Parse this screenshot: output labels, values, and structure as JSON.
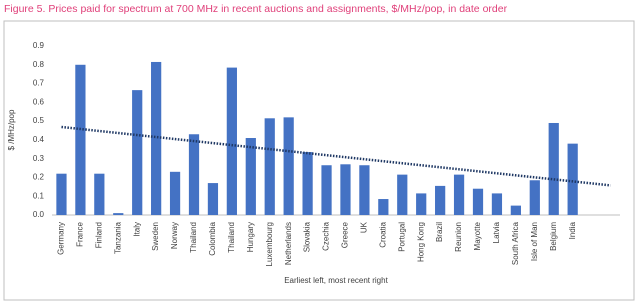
{
  "chart_data": {
    "type": "bar",
    "title": "Figure 5. Prices paid for spectrum at 700 MHz in recent auctions and assignments, $/MHz/pop, in date order",
    "y_label": "$ /MHz/pop",
    "x_label": "Earliest left, most recent right",
    "categories": [
      "Germany",
      "France",
      "Finland",
      "Tanzania",
      "Italy",
      "Sweden",
      "Norway",
      "Thailand",
      "Colombia",
      "Thailand",
      "Hungary",
      "Luxembourg",
      "Netherlands",
      "Slovakia",
      "Czechia",
      "Greece",
      "UK",
      "Croatia",
      "Portugal",
      "Hong Kong",
      "Brazil",
      "Reunion",
      "Mayotte",
      "Latvia",
      "South Africa",
      "Isle of Man",
      "Belgium",
      "India",
      null,
      null
    ],
    "values": [
      0.22,
      0.8,
      0.22,
      0.01,
      0.665,
      0.815,
      0.23,
      0.43,
      0.17,
      0.785,
      0.41,
      0.515,
      0.52,
      0.335,
      0.265,
      0.27,
      0.265,
      0.085,
      0.215,
      0.115,
      0.155,
      0.215,
      0.14,
      0.115,
      0.05,
      0.185,
      0.49,
      0.38,
      null,
      null
    ],
    "color": "#4472c4",
    "trendline": true,
    "trendline_color": "#1f3864",
    "ylim": [
      0,
      0.9
    ],
    "yticks": [
      {
        "value": 0,
        "label": "0.0"
      },
      {
        "value": 0.1,
        "label": "0.1"
      },
      {
        "value": 0.2,
        "label": "0.2"
      },
      {
        "value": 0.3,
        "label": "0.3"
      },
      {
        "value": 0.4,
        "label": "0.4"
      },
      {
        "value": 0.5,
        "label": "0.5"
      },
      {
        "value": 0.6,
        "label": "0.6"
      },
      {
        "value": 0.7,
        "label": "0.7"
      },
      {
        "value": 0.8,
        "label": "0.8"
      },
      {
        "value": 0.9,
        "label": "0.9"
      }
    ],
    "grid": false
  }
}
